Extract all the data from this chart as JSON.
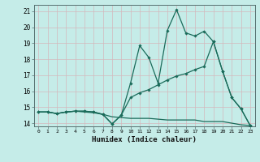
{
  "xlabel": "Humidex (Indice chaleur)",
  "bg_color": "#c5ece8",
  "grid_color": "#d4b8bc",
  "line_color": "#1a6b5a",
  "xlim": [
    -0.5,
    23.5
  ],
  "ylim": [
    13.8,
    21.4
  ],
  "xticks": [
    0,
    1,
    2,
    3,
    4,
    5,
    6,
    7,
    8,
    9,
    10,
    11,
    12,
    13,
    14,
    15,
    16,
    17,
    18,
    19,
    20,
    21,
    22,
    23
  ],
  "yticks": [
    14,
    15,
    16,
    17,
    18,
    19,
    20,
    21
  ],
  "line1_x": [
    0,
    1,
    2,
    3,
    4,
    5,
    6,
    7,
    8,
    9,
    10,
    11,
    12,
    13,
    14,
    15,
    16,
    17,
    18,
    19,
    20,
    21,
    22,
    23
  ],
  "line1_y": [
    14.7,
    14.7,
    14.6,
    14.7,
    14.75,
    14.7,
    14.65,
    14.55,
    14.4,
    14.35,
    14.3,
    14.3,
    14.3,
    14.25,
    14.2,
    14.2,
    14.2,
    14.2,
    14.1,
    14.1,
    14.1,
    14.0,
    13.9,
    13.85
  ],
  "line2_x": [
    0,
    1,
    2,
    3,
    4,
    5,
    6,
    7,
    8,
    9,
    10,
    11,
    12,
    13,
    14,
    15,
    16,
    17,
    18,
    19,
    20,
    21,
    22,
    23
  ],
  "line2_y": [
    14.7,
    14.7,
    14.6,
    14.7,
    14.75,
    14.75,
    14.7,
    14.55,
    13.95,
    14.5,
    16.5,
    18.85,
    18.1,
    16.5,
    19.8,
    21.1,
    19.65,
    19.45,
    19.75,
    19.1,
    17.25,
    15.6,
    14.9,
    13.85
  ],
  "line3_x": [
    0,
    1,
    2,
    3,
    4,
    5,
    6,
    7,
    8,
    9,
    10,
    11,
    12,
    13,
    14,
    15,
    16,
    17,
    18,
    19,
    20,
    21,
    22,
    23
  ],
  "line3_y": [
    14.7,
    14.7,
    14.6,
    14.7,
    14.75,
    14.75,
    14.7,
    14.55,
    13.95,
    14.5,
    15.6,
    15.9,
    16.1,
    16.4,
    16.7,
    16.95,
    17.1,
    17.35,
    17.55,
    19.1,
    17.25,
    15.6,
    14.9,
    13.85
  ]
}
